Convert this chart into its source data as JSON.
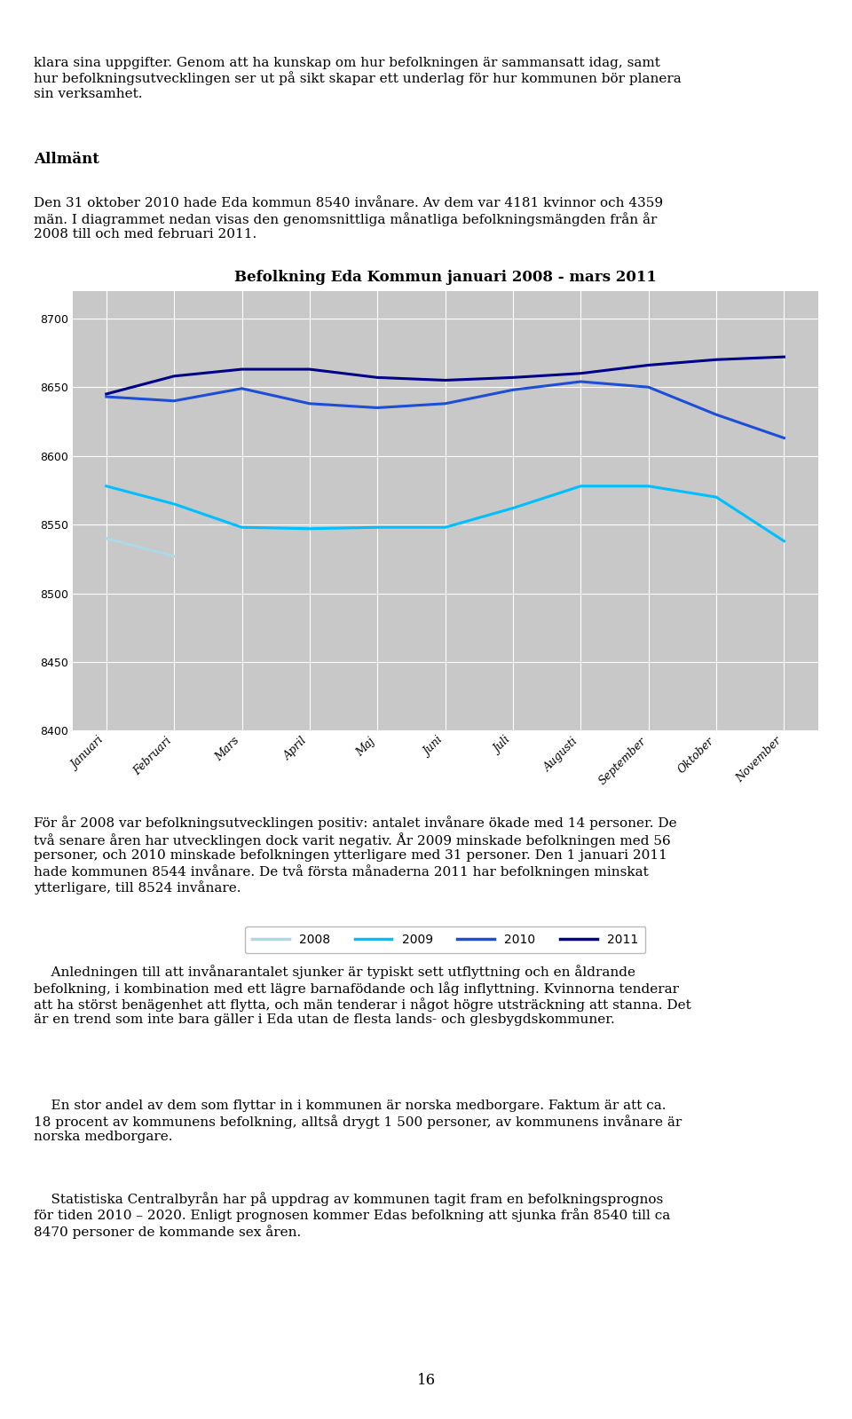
{
  "title": "Befolkning Eda Kommun januari 2008 - mars 2011",
  "ylim": [
    8400,
    8720
  ],
  "yticks": [
    8400,
    8450,
    8500,
    8550,
    8600,
    8650,
    8700
  ],
  "months": [
    "Januari",
    "Februari",
    "Mars",
    "April",
    "Maj",
    "Juni",
    "Juli",
    "Augusti",
    "September",
    "Oktober",
    "November"
  ],
  "series": {
    "2008": {
      "color": "#add8e6",
      "data": [
        8540,
        8527,
        null,
        null,
        null,
        null,
        null,
        null,
        null,
        null,
        null
      ]
    },
    "2009": {
      "color": "#00bfff",
      "data": [
        8578,
        8565,
        8548,
        8547,
        8548,
        8548,
        8562,
        8578,
        8578,
        8570,
        8538
      ]
    },
    "2010": {
      "color": "#1c4ed8",
      "data": [
        8643,
        8640,
        8649,
        8638,
        8635,
        8638,
        8648,
        8654,
        8650,
        8630,
        8613
      ]
    },
    "2011": {
      "color": "#00008b",
      "data": [
        8645,
        8658,
        8663,
        8663,
        8657,
        8655,
        8657,
        8660,
        8666,
        8670,
        8672
      ]
    }
  },
  "legend_labels": [
    "2008",
    "2009",
    "2010",
    "2011"
  ],
  "legend_colors": [
    "#add8e6",
    "#00bfff",
    "#1c4ed8",
    "#00008b"
  ]
}
